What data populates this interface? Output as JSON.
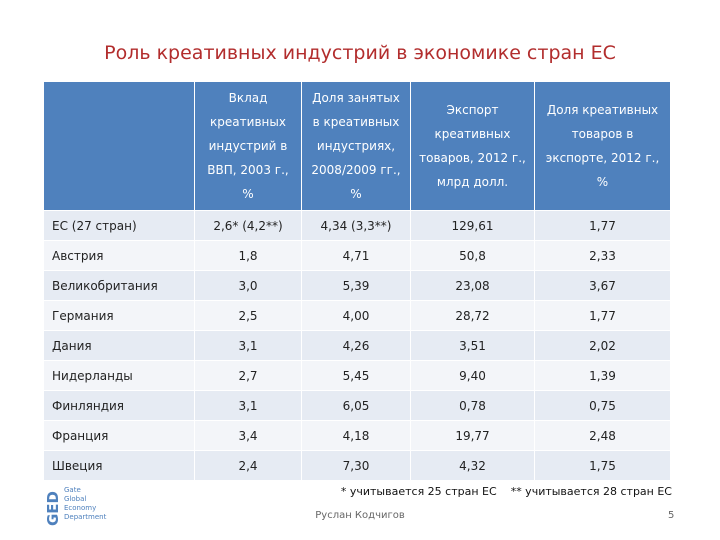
{
  "title": "Роль креативных индустрий в экономике стран ЕС",
  "table": {
    "header": [
      "Вклад креативных индустрий в ВВП, 2003 г., %",
      "Доля занятых в креативных индустриях, 2008/2009 гг., %",
      "Экспорт креативных товаров, 2012 г., млрд долл.",
      "Доля креативных товаров в экспорте, 2012 г., %"
    ],
    "rows": [
      [
        "ЕС (27 стран)",
        "2,6* (4,2**)",
        "4,34 (3,3**)",
        "129,61",
        "1,77"
      ],
      [
        "Австрия",
        "1,8",
        "4,71",
        "50,8",
        "2,33"
      ],
      [
        "Великобритания",
        "3,0",
        "5,39",
        "23,08",
        "3,67"
      ],
      [
        "Германия",
        "2,5",
        "4,00",
        "28,72",
        "1,77"
      ],
      [
        "Дания",
        "3,1",
        "4,26",
        "3,51",
        "2,02"
      ],
      [
        "Нидерланды",
        "2,7",
        "5,45",
        "9,40",
        "1,39"
      ],
      [
        "Финляндия",
        "3,1",
        "6,05",
        "0,78",
        "0,75"
      ],
      [
        "Франция",
        "3,4",
        "4,18",
        "19,77",
        "2,48"
      ],
      [
        "Швеция",
        "2,4",
        "7,30",
        "4,32",
        "1,75"
      ]
    ]
  },
  "footnotes": [
    "* учитывается 25 стран ЕС",
    "** учитывается 28 стран ЕС"
  ],
  "logo": {
    "mark": "GED",
    "lines": [
      "Gate",
      "Global",
      "Economy",
      "Department"
    ]
  },
  "footer": {
    "author": "Руслан Кодчигов",
    "page": "5"
  }
}
